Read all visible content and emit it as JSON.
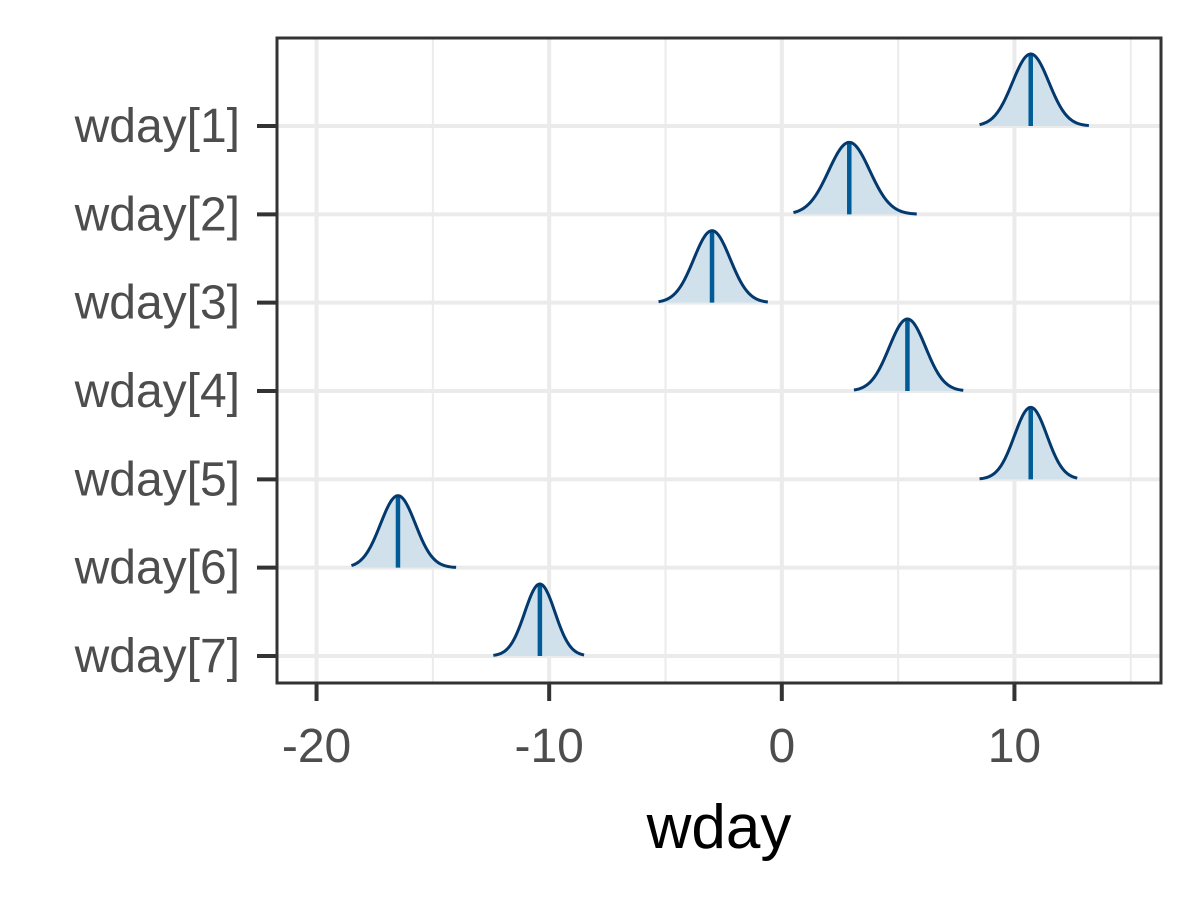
{
  "chart_data": {
    "type": "area",
    "subtype": "ridgeline-density",
    "xlabel": "wday",
    "ylabel": "",
    "xlim": [
      -21.7,
      16.3
    ],
    "x_ticks": [
      -20,
      -10,
      0,
      10
    ],
    "x_tick_labels": [
      "-20",
      "-10",
      "0",
      "10"
    ],
    "x_minor_ticks": [
      -15,
      -5,
      5,
      15
    ],
    "categories": [
      "wday[1]",
      "wday[2]",
      "wday[3]",
      "wday[4]",
      "wday[5]",
      "wday[6]",
      "wday[7]"
    ],
    "series": [
      {
        "label": "wday[1]",
        "median": 10.7,
        "min": 8.5,
        "max": 13.2
      },
      {
        "label": "wday[2]",
        "median": 2.9,
        "min": 0.5,
        "max": 5.8
      },
      {
        "label": "wday[3]",
        "median": -3.0,
        "min": -5.3,
        "max": -0.6
      },
      {
        "label": "wday[4]",
        "median": 5.4,
        "min": 3.1,
        "max": 7.8
      },
      {
        "label": "wday[5]",
        "median": 10.7,
        "min": 8.5,
        "max": 12.7
      },
      {
        "label": "wday[6]",
        "median": -16.5,
        "min": -18.5,
        "max": -14.0
      },
      {
        "label": "wday[7]",
        "median": -10.4,
        "min": -12.4,
        "max": -8.5
      }
    ],
    "grid": true,
    "legend": "none",
    "colors": {
      "fill": "#d1e1ec",
      "outline": "#03396c",
      "median_line": "#005b96",
      "grid": "#ebebeb",
      "panel_border": "#333333",
      "axis_tick": "#333333",
      "tick_text": "#4d4d4d",
      "title_text": "#000000"
    }
  }
}
